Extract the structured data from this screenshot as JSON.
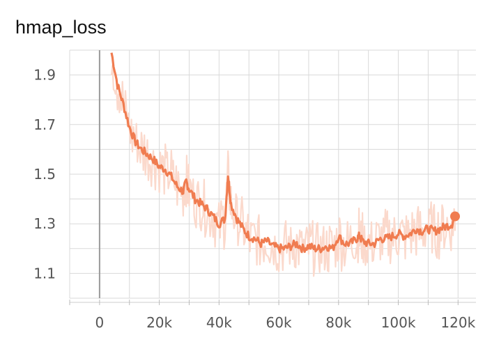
{
  "chart_data": {
    "type": "line",
    "title": "hmap_loss",
    "xlim": [
      -10000,
      126000
    ],
    "ylim": [
      1.0,
      2.0
    ],
    "x_ticks": [
      0,
      20000,
      40000,
      60000,
      80000,
      100000,
      120000
    ],
    "x_tick_labels": [
      "0",
      "20k",
      "40k",
      "60k",
      "80k",
      "100k",
      "120k"
    ],
    "y_ticks": [
      1.1,
      1.3,
      1.5,
      1.7,
      1.9
    ],
    "y_tick_labels": [
      "1.1",
      "1.3",
      "1.5",
      "1.7",
      "1.9"
    ],
    "grid": true,
    "colors": {
      "smoothed": "#f07c50",
      "raw": "#fbd9cc",
      "grid": "#d9d9d9",
      "zero_line": "#999999"
    },
    "series": [
      {
        "x": [
          4000,
          6000,
          8000,
          10000,
          12000,
          14000,
          16000,
          18000,
          20000,
          22000,
          24000,
          26000,
          28000,
          29000,
          30000,
          32000,
          34000,
          36000,
          38000,
          40000,
          42000,
          43000,
          44000,
          46000,
          48000,
          50000,
          52000,
          54000,
          56000,
          58000,
          60000,
          62000,
          64000,
          66000,
          68000,
          70000,
          72000,
          74000,
          76000,
          78000,
          80000,
          82000,
          84000,
          86000,
          87000,
          88000,
          90000,
          92000,
          94000,
          96000,
          98000,
          100000,
          102000,
          104000,
          106000,
          108000,
          110000,
          112000,
          114000,
          116000,
          118000,
          119000
        ],
        "values": [
          1.99,
          1.86,
          1.78,
          1.69,
          1.63,
          1.6,
          1.58,
          1.56,
          1.53,
          1.52,
          1.49,
          1.45,
          1.43,
          1.47,
          1.44,
          1.4,
          1.38,
          1.36,
          1.33,
          1.3,
          1.32,
          1.5,
          1.38,
          1.32,
          1.28,
          1.25,
          1.24,
          1.22,
          1.23,
          1.21,
          1.2,
          1.2,
          1.21,
          1.22,
          1.2,
          1.21,
          1.2,
          1.2,
          1.21,
          1.2,
          1.25,
          1.22,
          1.22,
          1.24,
          1.25,
          1.23,
          1.22,
          1.22,
          1.24,
          1.24,
          1.25,
          1.26,
          1.25,
          1.26,
          1.28,
          1.27,
          1.28,
          1.27,
          1.28,
          1.29,
          1.3,
          1.33
        ]
      }
    ]
  }
}
